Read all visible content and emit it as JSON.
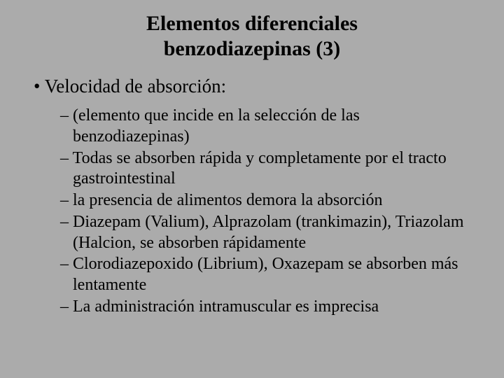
{
  "colors": {
    "background": "#ababab",
    "text": "#000000"
  },
  "typography": {
    "font_family": "Times New Roman",
    "title_fontsize_pt": 30,
    "title_weight": "bold",
    "level1_fontsize_pt": 27,
    "level2_fontsize_pt": 24
  },
  "title": {
    "line1": "Elementos diferenciales",
    "line2": "benzodiazepinas (3)"
  },
  "bullets": {
    "level1": "Velocidad de absorción:",
    "level2": [
      "(elemento que incide en la selección de las benzodiazepinas)",
      "Todas se absorben rápida y completamente por el tracto gastrointestinal",
      "la presencia de alimentos demora la absorción",
      "Diazepam (Valium), Alprazolam (trankimazin), Triazolam (Halcion, se absorben rápidamente",
      "Clorodiazepoxido (Librium), Oxazepam se absorben más lentamente",
      "La administración intramuscular es imprecisa"
    ]
  }
}
